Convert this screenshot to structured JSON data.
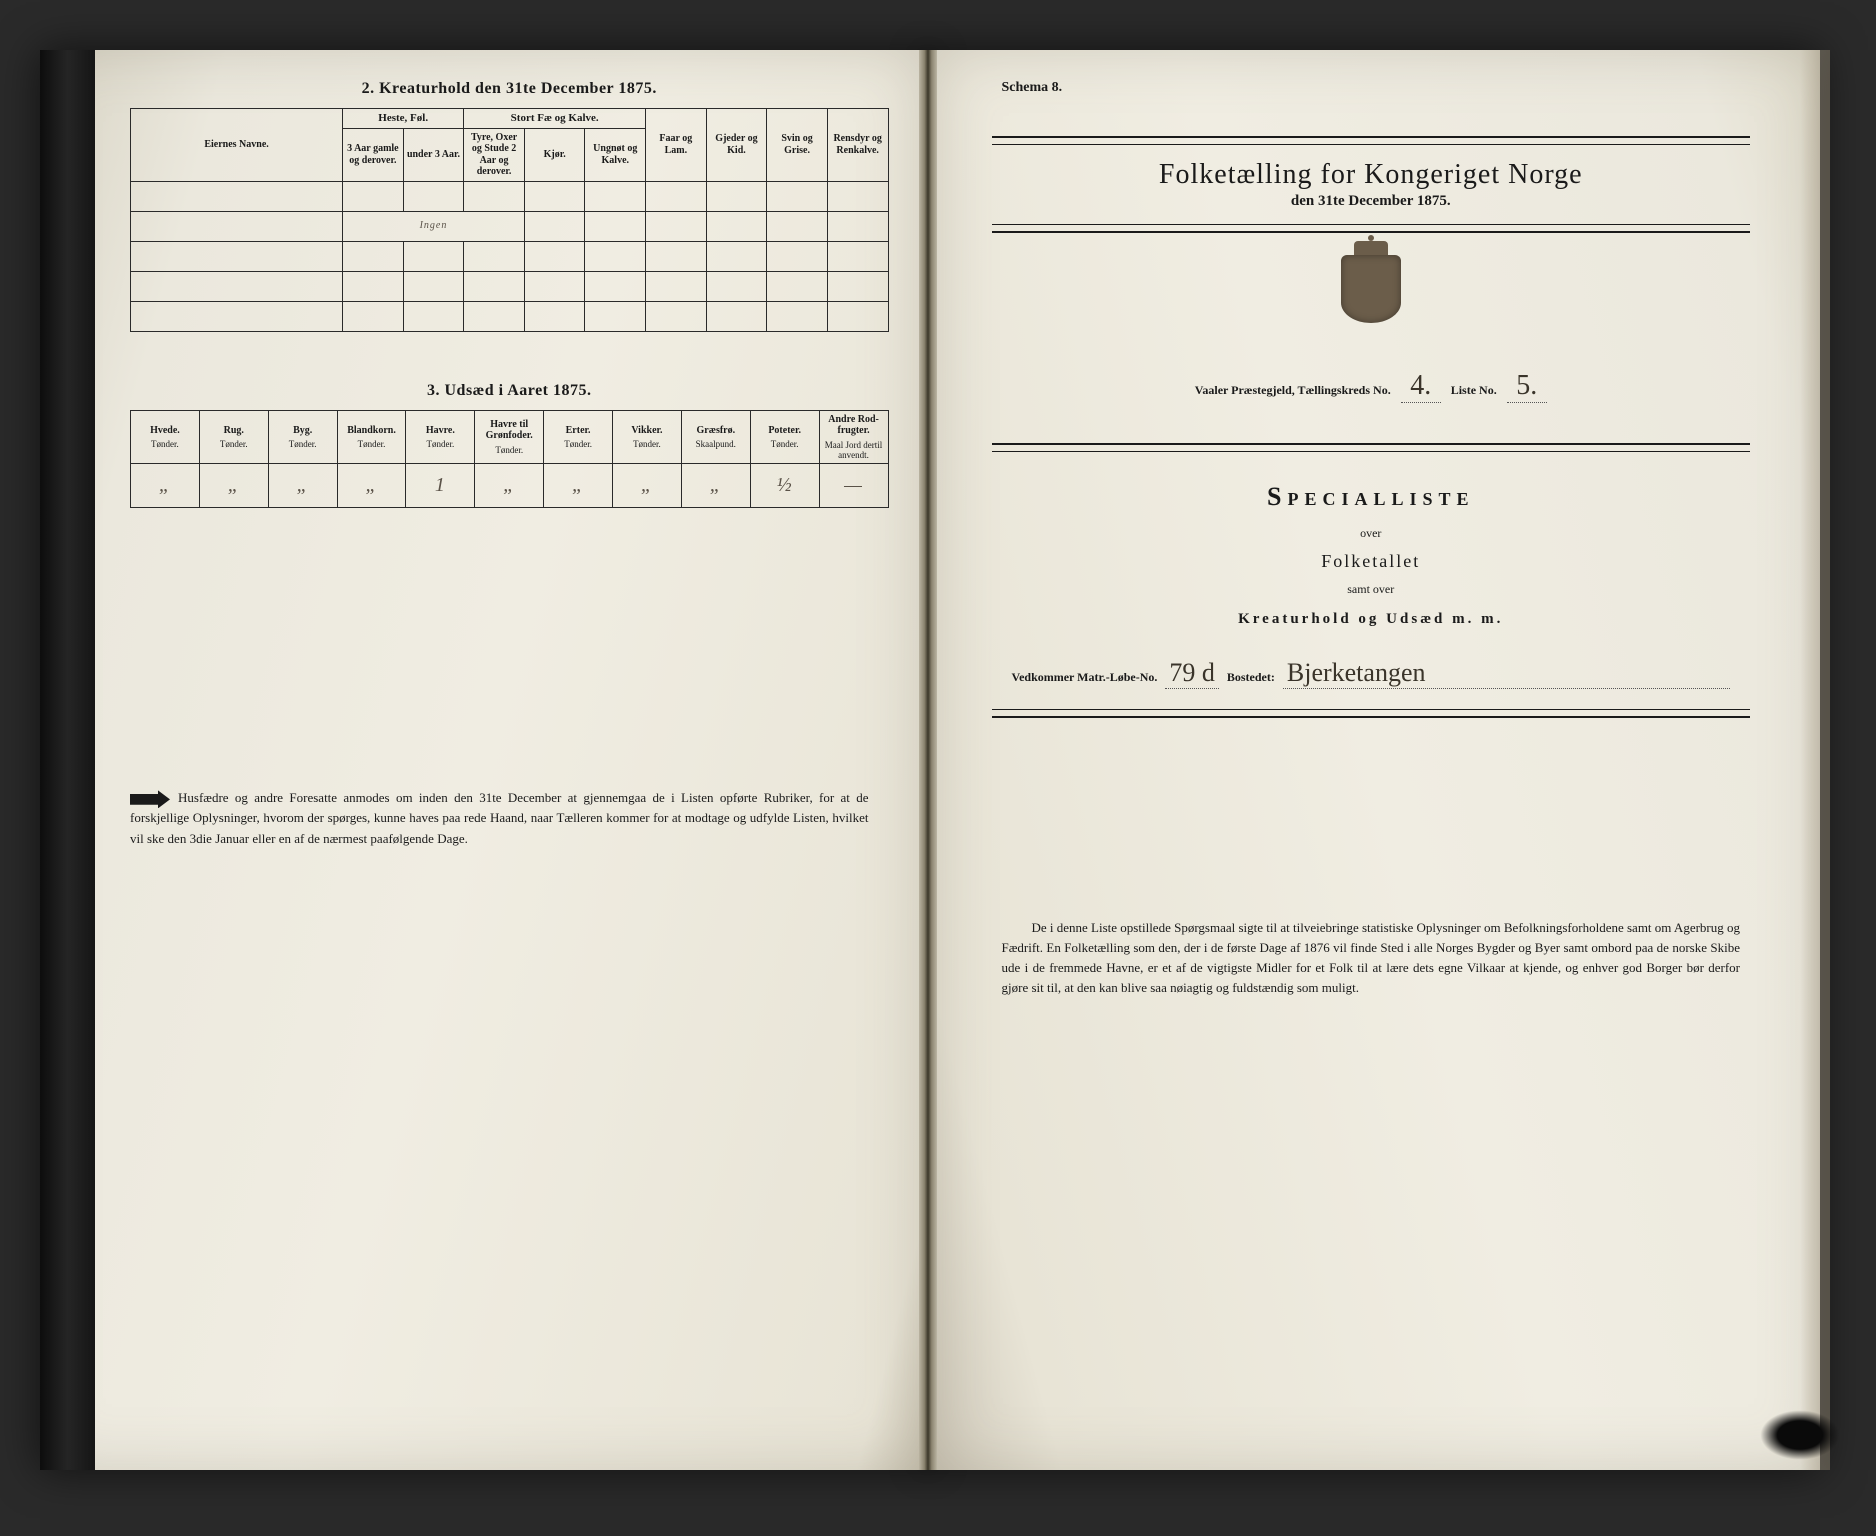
{
  "left": {
    "section2_title": "2.  Kreaturhold den 31te December 1875.",
    "tbl1": {
      "col_eier": "Eiernes Navne.",
      "grp_heste": "Heste, Føl.",
      "grp_stort": "Stort Fæ og Kalve.",
      "col_faar": "Faar og Lam.",
      "col_gjed": "Gjeder og Kid.",
      "col_svin": "Svin og Grise.",
      "col_rens": "Rensdyr og Renkalve.",
      "sub_h1": "3 Aar gamle og derover.",
      "sub_h2": "under 3 Aar.",
      "sub_s1": "Tyre, Oxer og Stude 2 Aar og derover.",
      "sub_s2": "Kjør.",
      "sub_s3": "Ungnøt og Kalve.",
      "hand_row1": "Ingen"
    },
    "section3_title": "3.  Udsæd i Aaret 1875.",
    "tbl2": {
      "cols": [
        "Hvede.",
        "Rug.",
        "Byg.",
        "Blandkorn.",
        "Havre.",
        "Havre til Grønfoder.",
        "Erter.",
        "Vikker.",
        "Græsfrø.",
        "Poteter.",
        "Andre Rod-frugter."
      ],
      "subs": [
        "Tønder.",
        "Tønder.",
        "Tønder.",
        "Tønder.",
        "Tønder.",
        "Tønder.",
        "Tønder.",
        "Tønder.",
        "Skaalpund.",
        "Tønder.",
        "Maal Jord dertil anvendt."
      ],
      "data": [
        "„",
        "„",
        "„",
        "„",
        "1",
        "„",
        "„",
        "„",
        "„",
        "½",
        "—"
      ]
    },
    "footnote": "Husfædre og andre Foresatte anmodes om inden den 31te December at gjennemgaa de i Listen opførte Rubriker, for at de forskjellige Oplysninger, hvorom der spørges, kunne haves paa rede Haand, naar Tælleren kommer for at modtage og udfylde Listen, hvilket vil ske den 3die Januar eller en af de nærmest paafølgende Dage."
  },
  "right": {
    "schema": "Schema 8.",
    "main_title": "Folketælling for Kongeriget Norge",
    "sub_title": "den 31te December 1875.",
    "prgj_label": "Vaaler  Præstegjeld,  Tællingskreds No.",
    "prgj_val": "4.",
    "liste_label": "Liste No.",
    "liste_val": "5.",
    "spec_title": "Specialliste",
    "spec_over": "over",
    "spec_folk": "Folketallet",
    "spec_samt": "samt over",
    "spec_kreat": "Kreaturhold og Udsæd m. m.",
    "matr_label": "Vedkommer Matr.-Løbe-No.",
    "matr_val": "79 d",
    "bosted_label": "Bostedet:",
    "bosted_val": "Bjerketangen",
    "footnote": "De i denne Liste opstillede Spørgsmaal sigte til at tilveiebringe statistiske Oplysninger om Befolkningsforholdene samt om Agerbrug og Fædrift.  En Folketælling som den, der i de første Dage af 1876 vil finde Sted i alle Norges Bygder og Byer samt ombord paa de norske Skibe ude i de fremmede Havne, er et af de vigtigste Midler for et Folk til at lære dets egne Vilkaar at kjende, og enhver god Borger bør derfor gjøre sit til, at den kan blive saa nøiagtig og fuldstændig som muligt."
  }
}
